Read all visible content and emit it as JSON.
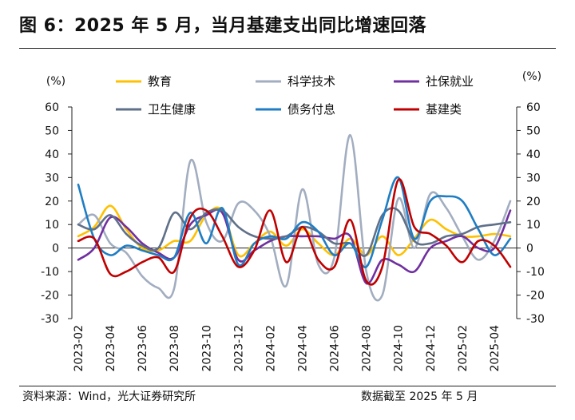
{
  "header": {
    "title": "图 6：2025 年 5 月，当月基建支出同比增速回落"
  },
  "footer": {
    "source": "资料来源：Wind，光大证券研究所",
    "date_note": "数据截至 2025 年 5 月"
  },
  "chart_data": {
    "type": "line",
    "ylabel_left": "(%)",
    "ylabel_right": "(%)",
    "ylim": [
      -30,
      60
    ],
    "yticks": [
      -30,
      -20,
      -10,
      0,
      10,
      20,
      30,
      40,
      50,
      60
    ],
    "grid": false,
    "legend_position": "top",
    "x": [
      "2023-02",
      "2023-03",
      "2023-04",
      "2023-05",
      "2023-06",
      "2023-07",
      "2023-08",
      "2023-09",
      "2023-10",
      "2023-11",
      "2023-12",
      "2024-01",
      "2024-02",
      "2024-03",
      "2024-04",
      "2024-05",
      "2024-06",
      "2024-07",
      "2024-08",
      "2024-09",
      "2024-10",
      "2024-11",
      "2024-12",
      "2025-01",
      "2025-02",
      "2025-03",
      "2025-04",
      "2025-05"
    ],
    "xtick_labels": [
      "2023-02",
      "2023-04",
      "2023-06",
      "2023-08",
      "2023-10",
      "2023-12",
      "2024-02",
      "2024-04",
      "2024-06",
      "2024-08",
      "2024-10",
      "2024-12",
      "2025-02",
      "2025-04"
    ],
    "series": [
      {
        "name": "教育",
        "color": "#FFC000",
        "values": [
          5,
          9,
          18,
          8,
          0,
          -1,
          3,
          3,
          14,
          16,
          -3,
          2,
          7,
          1,
          8,
          2,
          -3,
          4,
          -3,
          5,
          -3,
          4,
          12,
          8,
          5,
          5,
          6,
          5
        ]
      },
      {
        "name": "科学技术",
        "color": "#A2ADC0",
        "values": [
          10,
          14,
          2,
          -2,
          -12,
          -17,
          -17,
          37,
          11,
          3,
          19,
          16,
          5,
          -16,
          25,
          -7,
          -4,
          48,
          -10,
          -20,
          21,
          0,
          23,
          17,
          5,
          -5,
          3,
          20
        ]
      },
      {
        "name": "社保就业",
        "color": "#7030A0",
        "values": [
          -5,
          0,
          13,
          9,
          2,
          -2,
          -4,
          10,
          14,
          15,
          -5,
          -1,
          3,
          5,
          5,
          5,
          4,
          5,
          -15,
          -5,
          -7,
          -10,
          0,
          3,
          5,
          0,
          0,
          16
        ]
      },
      {
        "name": "卫生健康",
        "color": "#5F7089",
        "values": [
          10,
          8,
          14,
          6,
          1,
          0,
          15,
          8,
          15,
          16,
          9,
          5,
          4,
          5,
          9,
          7,
          2,
          2,
          -3,
          14,
          16,
          3,
          2,
          5,
          6,
          9,
          10,
          11
        ]
      },
      {
        "name": "债务付息",
        "color": "#1F7DC3",
        "values": [
          27,
          4,
          -3,
          1,
          -1,
          -3,
          -4,
          15,
          2,
          17,
          -7,
          2,
          5,
          4,
          11,
          7,
          -3,
          2,
          -8,
          12,
          30,
          4,
          20,
          22,
          20,
          8,
          -3,
          4
        ]
      },
      {
        "name": "基建类",
        "color": "#C00000",
        "values": [
          3,
          4,
          -11,
          -10,
          -6,
          -4,
          -10,
          13,
          16,
          5,
          -8,
          -1,
          16,
          -6,
          9,
          -5,
          -8,
          12,
          -14,
          -8,
          29,
          9,
          6,
          1,
          -6,
          3,
          1,
          -8
        ]
      }
    ]
  }
}
